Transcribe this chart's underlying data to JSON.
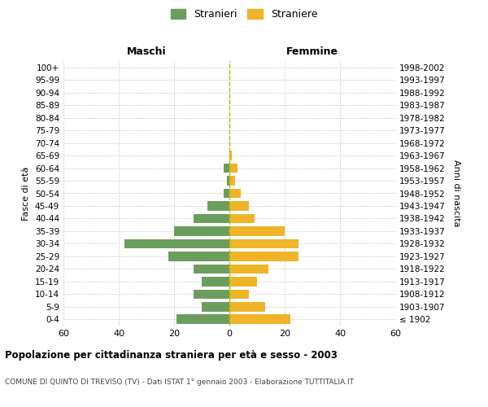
{
  "age_groups": [
    "0-4",
    "5-9",
    "10-14",
    "15-19",
    "20-24",
    "25-29",
    "30-34",
    "35-39",
    "40-44",
    "45-49",
    "50-54",
    "55-59",
    "60-64",
    "65-69",
    "70-74",
    "75-79",
    "80-84",
    "85-89",
    "90-94",
    "95-99",
    "100+"
  ],
  "birth_years": [
    "1998-2002",
    "1993-1997",
    "1988-1992",
    "1983-1987",
    "1978-1982",
    "1973-1977",
    "1968-1972",
    "1963-1967",
    "1958-1962",
    "1953-1957",
    "1948-1952",
    "1943-1947",
    "1938-1942",
    "1933-1937",
    "1928-1932",
    "1923-1927",
    "1918-1922",
    "1913-1917",
    "1908-1912",
    "1903-1907",
    "≤ 1902"
  ],
  "males": [
    19,
    10,
    13,
    10,
    13,
    22,
    38,
    20,
    13,
    8,
    2,
    1,
    2,
    0,
    0,
    0,
    0,
    0,
    0,
    0,
    0
  ],
  "females": [
    22,
    13,
    7,
    10,
    14,
    25,
    25,
    20,
    9,
    7,
    4,
    2,
    3,
    1,
    0,
    0,
    0,
    0,
    0,
    0,
    0
  ],
  "male_color": "#6b9e5e",
  "female_color": "#f0b429",
  "background_color": "#ffffff",
  "grid_color": "#cccccc",
  "center_line_color": "#b8b800",
  "title": "Popolazione per cittadinanza straniera per età e sesso - 2003",
  "subtitle": "COMUNE DI QUINTO DI TREVISO (TV) - Dati ISTAT 1° gennaio 2003 - Elaborazione TUTTITALIA.IT",
  "legend_stranieri": "Stranieri",
  "legend_straniere": "Straniere",
  "left_header": "Maschi",
  "right_header": "Femmine",
  "left_ylabel": "Fasce di età",
  "right_ylabel": "Anni di nascita",
  "xlim": 60
}
